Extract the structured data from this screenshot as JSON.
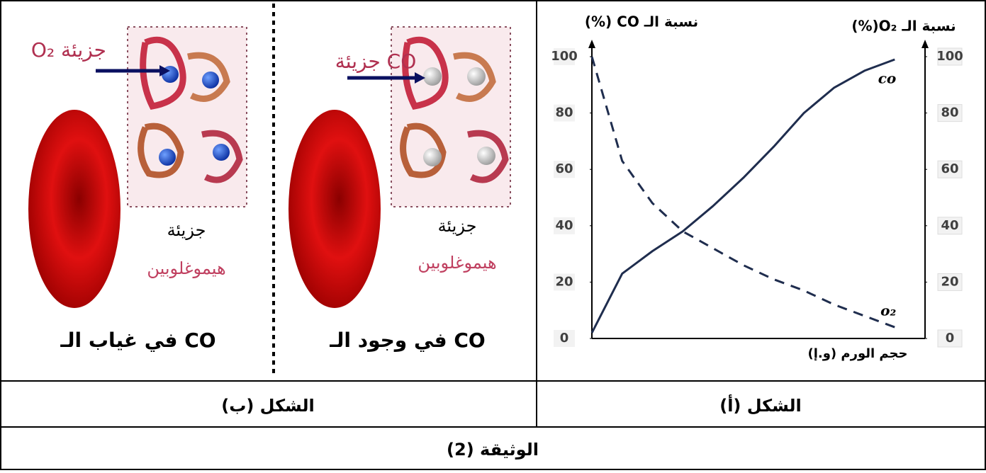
{
  "chart_data": {
    "type": "line",
    "y_label": "نسبة الـ CO (%)",
    "y2_label": "نسبة الـ O₂(%)",
    "x_label": "حجم الورم (و.إ)",
    "x": [
      0,
      1,
      2,
      3,
      4,
      5,
      6,
      7,
      8,
      9,
      10
    ],
    "xlim": [
      0,
      11
    ],
    "ylim": [
      0,
      100
    ],
    "yticks": [
      0,
      20,
      40,
      60,
      80,
      100
    ],
    "y2lim": [
      0,
      100
    ],
    "y2ticks": [
      0,
      20,
      40,
      60,
      80,
      100
    ],
    "series": [
      {
        "name": "co",
        "color": "#1f2d4e",
        "style": "solid",
        "values": [
          2,
          23,
          31,
          38,
          47,
          57,
          68,
          80,
          89,
          95,
          99
        ]
      },
      {
        "name": "o₂",
        "color": "#1f2d4e",
        "style": "dashed",
        "axis": "y2",
        "values": [
          100,
          63,
          48,
          38,
          32,
          26,
          21,
          17,
          12,
          8,
          4
        ]
      }
    ]
  },
  "figure_b": {
    "absent": {
      "caption": "في غياب الـ CO",
      "molecule": "جزيئة O₂",
      "hb_word": "جزيئة",
      "hb_name": "هيموغلوبين"
    },
    "present": {
      "caption": "في وجود الـ CO",
      "molecule": "جزيئة CO",
      "hb_word": "جزيئة",
      "hb_name": "هيموغلوبين"
    }
  },
  "captions": {
    "fig_b": "الشكل (ب)",
    "fig_a": "الشكل (أ)",
    "document": "الوثيقة (2)"
  }
}
